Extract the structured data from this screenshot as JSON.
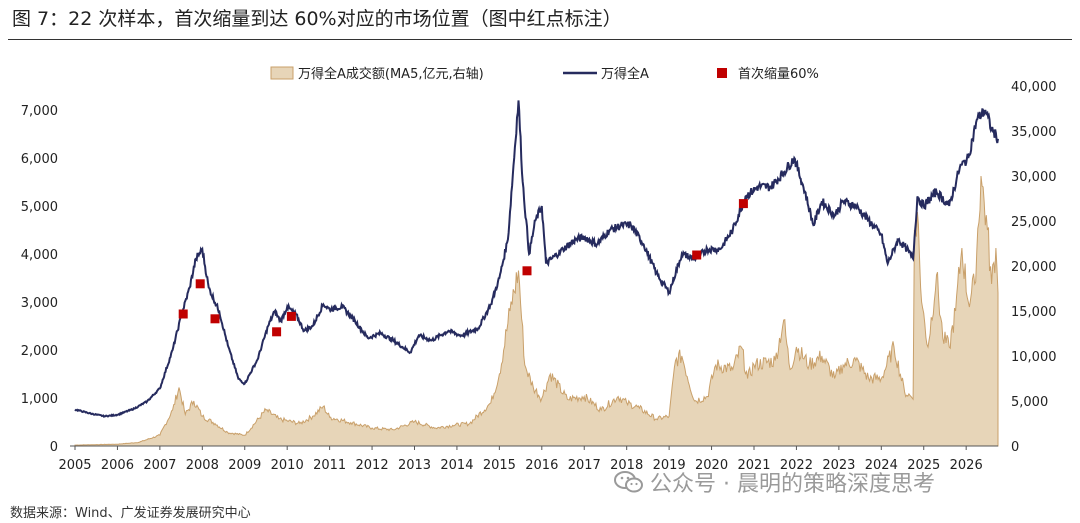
{
  "figure": {
    "title": "图 7：22 次样本，首次缩量到达 60%对应的市场位置（图中红点标注）",
    "source": "数据来源：Wind、广发证券发展研究中心",
    "watermark": "公众号 · 晨明的策略深度思考"
  },
  "colors": {
    "line": "#262b5e",
    "area_fill": "#e7d5b8",
    "area_stroke": "#c9a06a",
    "marker": "#c00000",
    "axis": "#555555"
  },
  "chart_data": {
    "type": "line",
    "title": "",
    "xlabel": "",
    "ylabel": "",
    "x_ticks": [
      "2005",
      "2006",
      "2007",
      "2008",
      "2009",
      "2010",
      "2011",
      "2012",
      "2013",
      "2014",
      "2015",
      "2016",
      "2017",
      "2018",
      "2019",
      "2020",
      "2021",
      "2022",
      "2023",
      "2024",
      "2025",
      "2026"
    ],
    "y_left_ticks": [
      "0",
      "1,000",
      "2,000",
      "3,000",
      "4,000",
      "5,000",
      "6,000",
      "7,000"
    ],
    "y_right_ticks": [
      "0",
      "5,000",
      "10,000",
      "15,000",
      "20,000",
      "25,000",
      "30,000",
      "35,000",
      "40,000"
    ],
    "ylim_left": [
      0,
      7500
    ],
    "ylim_right": [
      0,
      40000
    ],
    "xlim": [
      2005.0,
      2026.75
    ],
    "legend_position": "top",
    "series": [
      {
        "name": "万得全A成交额(MA5,亿元,右轴)",
        "type": "area",
        "axis": "right",
        "points": [
          [
            2005.0,
            100
          ],
          [
            2005.5,
            150
          ],
          [
            2006.0,
            200
          ],
          [
            2006.5,
            400
          ],
          [
            2007.0,
            1200
          ],
          [
            2007.3,
            4000
          ],
          [
            2007.45,
            6500
          ],
          [
            2007.6,
            3500
          ],
          [
            2007.8,
            5000
          ],
          [
            2008.0,
            3300
          ],
          [
            2008.3,
            2500
          ],
          [
            2008.6,
            1500
          ],
          [
            2009.0,
            1200
          ],
          [
            2009.5,
            4000
          ],
          [
            2009.8,
            3000
          ],
          [
            2010.0,
            2800
          ],
          [
            2010.3,
            2500
          ],
          [
            2010.6,
            3300
          ],
          [
            2010.85,
            4400
          ],
          [
            2011.0,
            3200
          ],
          [
            2011.5,
            2600
          ],
          [
            2012.0,
            2000
          ],
          [
            2012.5,
            1800
          ],
          [
            2013.0,
            2700
          ],
          [
            2013.5,
            2000
          ],
          [
            2013.9,
            2300
          ],
          [
            2014.3,
            2500
          ],
          [
            2014.8,
            4800
          ],
          [
            2015.0,
            8000
          ],
          [
            2015.25,
            15000
          ],
          [
            2015.45,
            19500
          ],
          [
            2015.6,
            9000
          ],
          [
            2015.8,
            6500
          ],
          [
            2016.0,
            5300
          ],
          [
            2016.2,
            8000
          ],
          [
            2016.6,
            5200
          ],
          [
            2017.0,
            5500
          ],
          [
            2017.4,
            4000
          ],
          [
            2017.8,
            5500
          ],
          [
            2018.0,
            4800
          ],
          [
            2018.3,
            4200
          ],
          [
            2018.7,
            3000
          ],
          [
            2019.0,
            3300
          ],
          [
            2019.15,
            9500
          ],
          [
            2019.3,
            10000
          ],
          [
            2019.6,
            5000
          ],
          [
            2019.9,
            5500
          ],
          [
            2020.1,
            9000
          ],
          [
            2020.5,
            8500
          ],
          [
            2020.7,
            11000
          ],
          [
            2020.85,
            7500
          ],
          [
            2021.0,
            9000
          ],
          [
            2021.5,
            9500
          ],
          [
            2021.7,
            14000
          ],
          [
            2021.85,
            8500
          ],
          [
            2022.0,
            11000
          ],
          [
            2022.3,
            9000
          ],
          [
            2022.6,
            10000
          ],
          [
            2022.9,
            7500
          ],
          [
            2023.1,
            9000
          ],
          [
            2023.4,
            9500
          ],
          [
            2023.7,
            7500
          ],
          [
            2024.0,
            7500
          ],
          [
            2024.3,
            11000
          ],
          [
            2024.55,
            6000
          ],
          [
            2024.7,
            5500
          ],
          [
            2024.75,
            5200
          ],
          [
            2024.78,
            24000
          ],
          [
            2024.85,
            26000
          ],
          [
            2024.95,
            16000
          ],
          [
            2025.1,
            11000
          ],
          [
            2025.3,
            19000
          ],
          [
            2025.45,
            12000
          ],
          [
            2025.6,
            11000
          ],
          [
            2025.75,
            15000
          ],
          [
            2025.9,
            22000
          ],
          [
            2026.05,
            16000
          ],
          [
            2026.2,
            18000
          ],
          [
            2026.35,
            30000
          ],
          [
            2026.5,
            24000
          ],
          [
            2026.6,
            18000
          ],
          [
            2026.7,
            22000
          ],
          [
            2026.75,
            17000
          ]
        ]
      },
      {
        "name": "万得全A",
        "type": "line",
        "axis": "left",
        "points": [
          [
            2005.0,
            760
          ],
          [
            2005.4,
            670
          ],
          [
            2005.7,
            620
          ],
          [
            2006.0,
            650
          ],
          [
            2006.4,
            780
          ],
          [
            2006.7,
            930
          ],
          [
            2007.0,
            1200
          ],
          [
            2007.3,
            2000
          ],
          [
            2007.5,
            2700
          ],
          [
            2007.7,
            3300
          ],
          [
            2007.85,
            3900
          ],
          [
            2008.0,
            4100
          ],
          [
            2008.15,
            3300
          ],
          [
            2008.4,
            2800
          ],
          [
            2008.6,
            2100
          ],
          [
            2008.85,
            1400
          ],
          [
            2009.0,
            1300
          ],
          [
            2009.3,
            1800
          ],
          [
            2009.55,
            2500
          ],
          [
            2009.7,
            2800
          ],
          [
            2009.85,
            2600
          ],
          [
            2010.0,
            2900
          ],
          [
            2010.2,
            2750
          ],
          [
            2010.4,
            2400
          ],
          [
            2010.6,
            2500
          ],
          [
            2010.85,
            2950
          ],
          [
            2011.0,
            2850
          ],
          [
            2011.3,
            2900
          ],
          [
            2011.6,
            2600
          ],
          [
            2011.9,
            2250
          ],
          [
            2012.2,
            2350
          ],
          [
            2012.5,
            2200
          ],
          [
            2012.9,
            1950
          ],
          [
            2013.1,
            2300
          ],
          [
            2013.4,
            2200
          ],
          [
            2013.8,
            2400
          ],
          [
            2014.1,
            2300
          ],
          [
            2014.5,
            2450
          ],
          [
            2014.8,
            2950
          ],
          [
            2015.0,
            3500
          ],
          [
            2015.2,
            4300
          ],
          [
            2015.45,
            7200
          ],
          [
            2015.55,
            5500
          ],
          [
            2015.7,
            4000
          ],
          [
            2015.85,
            4700
          ],
          [
            2016.0,
            5000
          ],
          [
            2016.1,
            3800
          ],
          [
            2016.5,
            4100
          ],
          [
            2016.8,
            4300
          ],
          [
            2017.0,
            4350
          ],
          [
            2017.3,
            4200
          ],
          [
            2017.6,
            4500
          ],
          [
            2017.9,
            4600
          ],
          [
            2018.1,
            4600
          ],
          [
            2018.4,
            4200
          ],
          [
            2018.7,
            3600
          ],
          [
            2019.0,
            3200
          ],
          [
            2019.3,
            4000
          ],
          [
            2019.6,
            3900
          ],
          [
            2019.9,
            4100
          ],
          [
            2020.2,
            4100
          ],
          [
            2020.5,
            4500
          ],
          [
            2020.8,
            5200
          ],
          [
            2021.1,
            5400
          ],
          [
            2021.4,
            5400
          ],
          [
            2021.7,
            5700
          ],
          [
            2021.95,
            6000
          ],
          [
            2022.2,
            5300
          ],
          [
            2022.4,
            4600
          ],
          [
            2022.6,
            5100
          ],
          [
            2022.9,
            4800
          ],
          [
            2023.1,
            5100
          ],
          [
            2023.4,
            5000
          ],
          [
            2023.7,
            4700
          ],
          [
            2024.0,
            4400
          ],
          [
            2024.15,
            3800
          ],
          [
            2024.4,
            4300
          ],
          [
            2024.6,
            4100
          ],
          [
            2024.75,
            3900
          ],
          [
            2024.85,
            5200
          ],
          [
            2025.0,
            5000
          ],
          [
            2025.3,
            5300
          ],
          [
            2025.6,
            5000
          ],
          [
            2025.85,
            5800
          ],
          [
            2026.05,
            6000
          ],
          [
            2026.25,
            6800
          ],
          [
            2026.45,
            7000
          ],
          [
            2026.6,
            6600
          ],
          [
            2026.75,
            6400
          ]
        ]
      },
      {
        "name": "首次缩量60%",
        "type": "scatter",
        "axis": "left",
        "points": [
          [
            2007.55,
            2750
          ],
          [
            2007.95,
            3380
          ],
          [
            2008.3,
            2650
          ],
          [
            2009.75,
            2380
          ],
          [
            2010.1,
            2700
          ],
          [
            2015.65,
            3650
          ],
          [
            2019.65,
            3980
          ],
          [
            2020.75,
            5050
          ]
        ]
      }
    ]
  }
}
